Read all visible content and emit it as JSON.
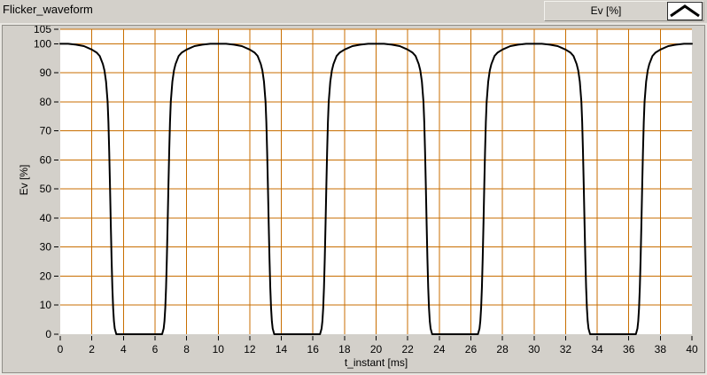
{
  "window": {
    "title": "Flicker_waveform"
  },
  "legend": {
    "plot_label": "Ev [%]",
    "swatch_icon": "waveform-line-sample-chevron"
  },
  "colors": {
    "panel_bg": "#d3d0ca",
    "plot_bg": "#ffffff",
    "grid": "#c86e00",
    "line": "#000000",
    "tick": "#000000",
    "bevel_light": "#e9e7e2",
    "bevel_dark": "#8f8d87"
  },
  "chart_data": {
    "type": "line",
    "title": "Flicker_waveform",
    "xlabel": "t_instant [ms]",
    "ylabel": "Ev [%]",
    "xlim": [
      0,
      40
    ],
    "ylim": [
      0,
      105
    ],
    "x_ticks": [
      0,
      2,
      4,
      6,
      8,
      10,
      12,
      14,
      16,
      18,
      20,
      22,
      24,
      26,
      28,
      30,
      32,
      34,
      36,
      38,
      40
    ],
    "y_ticks": [
      0,
      10,
      20,
      30,
      40,
      50,
      60,
      70,
      80,
      90,
      100,
      105
    ],
    "grid": true,
    "legend_position": "top-right",
    "description": "Periodic flicker waveform, period 10 ms, rounded 100% domes centered at t=0,10,20,30,40 ms with flat 0% valleys centered at t=5,15,25,35 ms",
    "series": [
      {
        "name": "Ev [%]",
        "color": "#000000",
        "points": [
          [
            0,
            100
          ],
          [
            0.5,
            100
          ],
          [
            1,
            99.7
          ],
          [
            1.5,
            99.2
          ],
          [
            2,
            98
          ],
          [
            2.3,
            97
          ],
          [
            2.5,
            95.8
          ],
          [
            2.7,
            93
          ],
          [
            2.8,
            90.8
          ],
          [
            2.9,
            87
          ],
          [
            3,
            80
          ],
          [
            3.05,
            73
          ],
          [
            3.1,
            63
          ],
          [
            3.15,
            51
          ],
          [
            3.2,
            38
          ],
          [
            3.25,
            26
          ],
          [
            3.3,
            16
          ],
          [
            3.35,
            9
          ],
          [
            3.4,
            4.5
          ],
          [
            3.45,
            2
          ],
          [
            3.55,
            0
          ],
          [
            6.45,
            0
          ],
          [
            6.55,
            2
          ],
          [
            6.6,
            4.5
          ],
          [
            6.65,
            9
          ],
          [
            6.7,
            16
          ],
          [
            6.75,
            26
          ],
          [
            6.8,
            38
          ],
          [
            6.85,
            51
          ],
          [
            6.9,
            63
          ],
          [
            6.95,
            73
          ],
          [
            7,
            80
          ],
          [
            7.1,
            87
          ],
          [
            7.2,
            90.8
          ],
          [
            7.3,
            93
          ],
          [
            7.5,
            95.8
          ],
          [
            7.7,
            97
          ],
          [
            8,
            98
          ],
          [
            8.5,
            99.2
          ],
          [
            9,
            99.7
          ],
          [
            9.5,
            100
          ],
          [
            10,
            100
          ],
          [
            10.5,
            100
          ],
          [
            11,
            99.7
          ],
          [
            11.5,
            99.2
          ],
          [
            12,
            98
          ],
          [
            12.3,
            97
          ],
          [
            12.5,
            95.8
          ],
          [
            12.7,
            93
          ],
          [
            12.8,
            90.8
          ],
          [
            12.9,
            87
          ],
          [
            13,
            80
          ],
          [
            13.05,
            73
          ],
          [
            13.1,
            63
          ],
          [
            13.15,
            51
          ],
          [
            13.2,
            38
          ],
          [
            13.25,
            26
          ],
          [
            13.3,
            16
          ],
          [
            13.35,
            9
          ],
          [
            13.4,
            4.5
          ],
          [
            13.45,
            2
          ],
          [
            13.55,
            0
          ],
          [
            16.45,
            0
          ],
          [
            16.55,
            2
          ],
          [
            16.6,
            4.5
          ],
          [
            16.65,
            9
          ],
          [
            16.7,
            16
          ],
          [
            16.75,
            26
          ],
          [
            16.8,
            38
          ],
          [
            16.85,
            51
          ],
          [
            16.9,
            63
          ],
          [
            16.95,
            73
          ],
          [
            17,
            80
          ],
          [
            17.1,
            87
          ],
          [
            17.2,
            90.8
          ],
          [
            17.3,
            93
          ],
          [
            17.5,
            95.8
          ],
          [
            17.7,
            97
          ],
          [
            18,
            98
          ],
          [
            18.5,
            99.2
          ],
          [
            19,
            99.7
          ],
          [
            19.5,
            100
          ],
          [
            20,
            100
          ],
          [
            20.5,
            100
          ],
          [
            21,
            99.7
          ],
          [
            21.5,
            99.2
          ],
          [
            22,
            98
          ],
          [
            22.3,
            97
          ],
          [
            22.5,
            95.8
          ],
          [
            22.7,
            93
          ],
          [
            22.8,
            90.8
          ],
          [
            22.9,
            87
          ],
          [
            23,
            80
          ],
          [
            23.05,
            73
          ],
          [
            23.1,
            63
          ],
          [
            23.15,
            51
          ],
          [
            23.2,
            38
          ],
          [
            23.25,
            26
          ],
          [
            23.3,
            16
          ],
          [
            23.35,
            9
          ],
          [
            23.4,
            4.5
          ],
          [
            23.45,
            2
          ],
          [
            23.55,
            0
          ],
          [
            26.45,
            0
          ],
          [
            26.55,
            2
          ],
          [
            26.6,
            4.5
          ],
          [
            26.65,
            9
          ],
          [
            26.7,
            16
          ],
          [
            26.75,
            26
          ],
          [
            26.8,
            38
          ],
          [
            26.85,
            51
          ],
          [
            26.9,
            63
          ],
          [
            26.95,
            73
          ],
          [
            27,
            80
          ],
          [
            27.1,
            87
          ],
          [
            27.2,
            90.8
          ],
          [
            27.3,
            93
          ],
          [
            27.5,
            95.8
          ],
          [
            27.7,
            97
          ],
          [
            28,
            98
          ],
          [
            28.5,
            99.2
          ],
          [
            29,
            99.7
          ],
          [
            29.5,
            100
          ],
          [
            30,
            100
          ],
          [
            30.5,
            100
          ],
          [
            31,
            99.7
          ],
          [
            31.5,
            99.2
          ],
          [
            32,
            98
          ],
          [
            32.3,
            97
          ],
          [
            32.5,
            95.8
          ],
          [
            32.7,
            93
          ],
          [
            32.8,
            90.8
          ],
          [
            32.9,
            87
          ],
          [
            33,
            80
          ],
          [
            33.05,
            73
          ],
          [
            33.1,
            63
          ],
          [
            33.15,
            51
          ],
          [
            33.2,
            38
          ],
          [
            33.25,
            26
          ],
          [
            33.3,
            16
          ],
          [
            33.35,
            9
          ],
          [
            33.4,
            4.5
          ],
          [
            33.45,
            2
          ],
          [
            33.55,
            0
          ],
          [
            36.45,
            0
          ],
          [
            36.55,
            2
          ],
          [
            36.6,
            4.5
          ],
          [
            36.65,
            9
          ],
          [
            36.7,
            16
          ],
          [
            36.75,
            26
          ],
          [
            36.8,
            38
          ],
          [
            36.85,
            51
          ],
          [
            36.9,
            63
          ],
          [
            36.95,
            73
          ],
          [
            37,
            80
          ],
          [
            37.1,
            87
          ],
          [
            37.2,
            90.8
          ],
          [
            37.3,
            93
          ],
          [
            37.5,
            95.8
          ],
          [
            37.7,
            97
          ],
          [
            38,
            98
          ],
          [
            38.5,
            99.2
          ],
          [
            39,
            99.7
          ],
          [
            39.5,
            100
          ],
          [
            40,
            100
          ]
        ]
      }
    ]
  }
}
